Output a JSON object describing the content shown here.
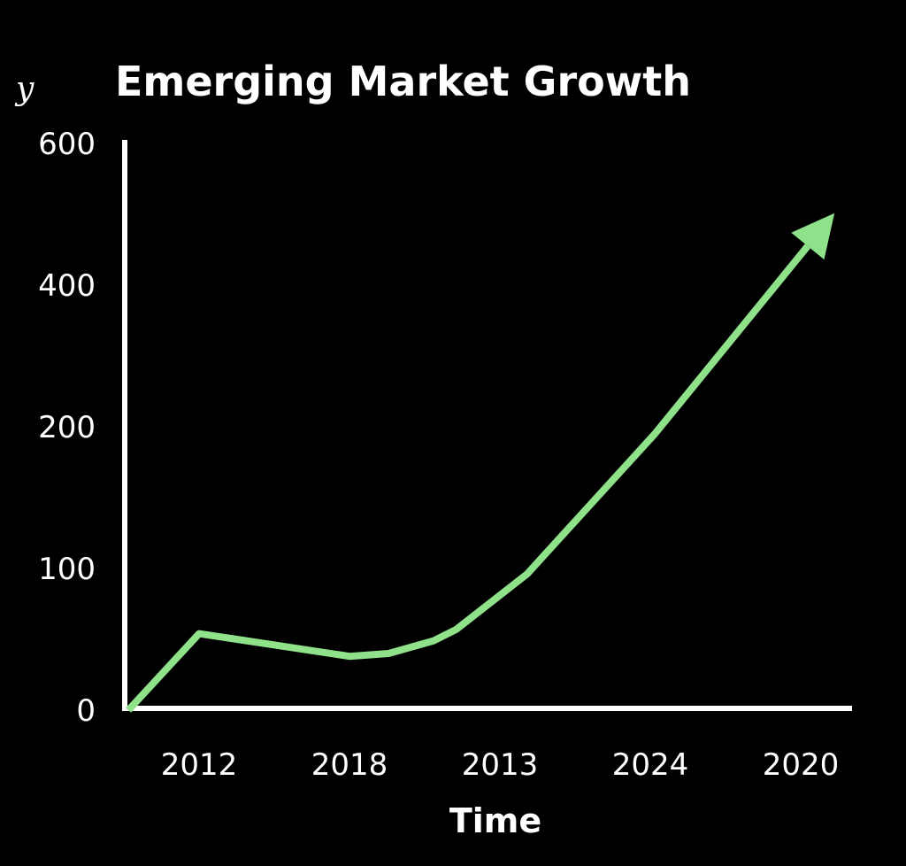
{
  "chart_data": {
    "type": "line",
    "title": "Emerging Market Growth",
    "xlabel": "Time",
    "ylabel": "y",
    "x_tick_labels": [
      "2012",
      "2018",
      "2013",
      "2024",
      "2020"
    ],
    "y_tick_labels": [
      "0",
      "100",
      "200",
      "400",
      "600"
    ],
    "y_tick_values": [
      0,
      100,
      200,
      400,
      600
    ],
    "ylim": [
      0,
      600
    ],
    "grid": false,
    "legend": "none",
    "series": [
      {
        "name": "Emerging Market Growth",
        "color": "#8fe28a",
        "arrow_end": true,
        "x_category_index": [
          -0.47,
          0,
          1,
          1.26,
          1.56,
          1.71,
          2.18,
          3.03,
          4.18
        ],
        "values": [
          0,
          54,
          38,
          40,
          49,
          57,
          96,
          195,
          490
        ]
      }
    ],
    "colors": {
      "background": "#000000",
      "axis": "#ffffff",
      "line": "#8fe28a"
    }
  }
}
